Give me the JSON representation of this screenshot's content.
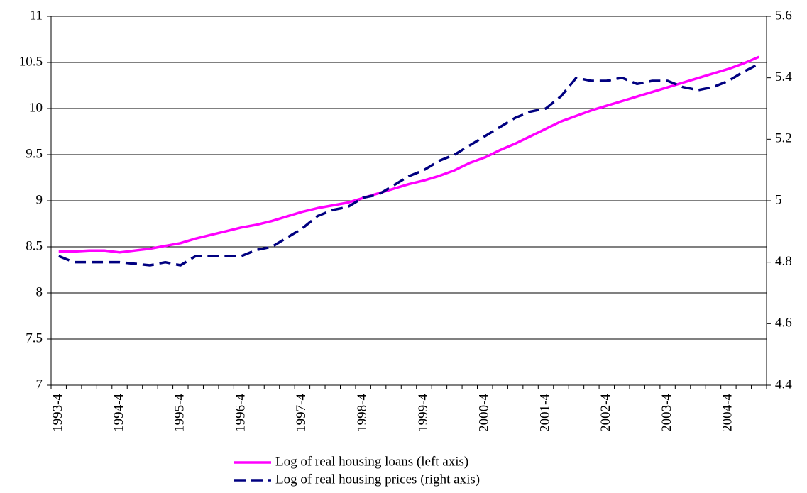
{
  "chart_data": {
    "type": "line",
    "categories": [
      "1993-4",
      null,
      null,
      null,
      "1994-4",
      null,
      null,
      null,
      "1995-4",
      null,
      null,
      null,
      "1996-4",
      null,
      null,
      null,
      "1997-4",
      null,
      null,
      null,
      "1998-4",
      null,
      null,
      null,
      "1999-4",
      null,
      null,
      null,
      "2000-4",
      null,
      null,
      null,
      "2001-4",
      null,
      null,
      null,
      "2002-4",
      null,
      null,
      null,
      "2003-4",
      null,
      null,
      null,
      "2004-4",
      null,
      null
    ],
    "series": [
      {
        "name": "Log of real housing loans (left axis)",
        "color": "#ff00ff",
        "axis": "y",
        "values": [
          8.45,
          8.45,
          8.46,
          8.46,
          8.44,
          8.46,
          8.48,
          8.51,
          8.54,
          8.59,
          8.63,
          8.67,
          8.71,
          8.74,
          8.78,
          8.83,
          8.88,
          8.92,
          8.95,
          8.98,
          9.03,
          9.08,
          9.13,
          9.18,
          9.22,
          9.27,
          9.33,
          9.41,
          9.47,
          9.55,
          9.62,
          9.7,
          9.78,
          9.86,
          9.92,
          9.98,
          10.03,
          10.08,
          10.13,
          10.18,
          10.23,
          10.28,
          10.33,
          10.38,
          10.43,
          10.49,
          10.56
        ]
      },
      {
        "name": "Log of real housing prices (right axis)",
        "color": "#000080",
        "axis": "y2",
        "dashed": true,
        "values": [
          4.82,
          4.8,
          4.8,
          4.8,
          4.8,
          4.795,
          4.79,
          4.8,
          4.79,
          4.82,
          4.82,
          4.82,
          4.82,
          4.84,
          4.85,
          4.88,
          4.91,
          4.95,
          4.97,
          4.98,
          5.01,
          5.02,
          5.05,
          5.08,
          5.1,
          5.13,
          5.15,
          5.18,
          5.21,
          5.24,
          5.27,
          5.29,
          5.3,
          5.34,
          5.4,
          5.39,
          5.39,
          5.4,
          5.38,
          5.39,
          5.39,
          5.37,
          5.36,
          5.37,
          5.39,
          5.42,
          5.445
        ]
      }
    ],
    "ylim": [
      7,
      11
    ],
    "yticks": [
      7,
      7.5,
      8,
      8.5,
      9,
      9.5,
      10,
      10.5,
      11
    ],
    "y2lim": [
      4.4,
      5.6
    ],
    "y2ticks": [
      4.4,
      4.6,
      4.8,
      5,
      5.2,
      5.4,
      5.6
    ],
    "grid": true
  }
}
